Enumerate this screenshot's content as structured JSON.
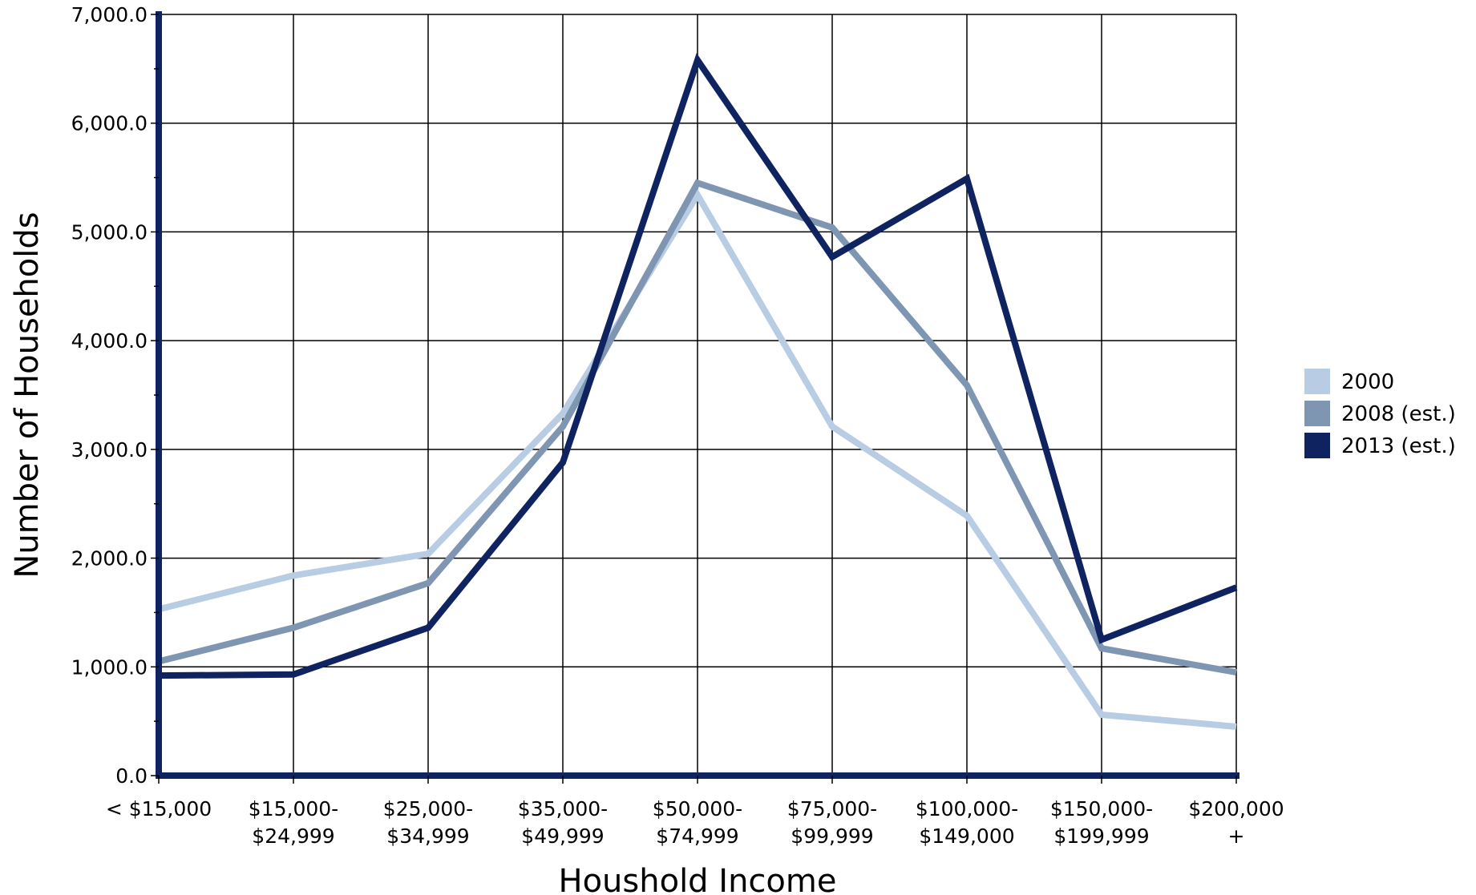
{
  "chart_data": {
    "type": "line",
    "title": "",
    "xlabel": "Houshold Income",
    "ylabel": "Number of Households",
    "categories": [
      [
        "< $15,000"
      ],
      [
        "$15,000-",
        "$24,999"
      ],
      [
        "$25,000-",
        "$34,999"
      ],
      [
        "$35,000-",
        "$49,999"
      ],
      [
        "$50,000-",
        "$74,999"
      ],
      [
        "$75,000-",
        "$99,999"
      ],
      [
        "$100,000-",
        "$149,000"
      ],
      [
        "$150,000-",
        "$199,999"
      ],
      [
        "$200,000",
        "+"
      ]
    ],
    "ylim": [
      0,
      7000
    ],
    "yticks": [
      "0.0",
      "1,000.0",
      "2,000.0",
      "3,000.0",
      "4,000.0",
      "5,000.0",
      "6,000.0",
      "7,000.0"
    ],
    "grid": true,
    "legend_position": "right",
    "series": [
      {
        "name": "2000",
        "color": "#b8cce4",
        "values": [
          1530,
          1840,
          2040,
          3330,
          5340,
          3210,
          2390,
          560,
          450
        ]
      },
      {
        "name": "2008 (est.)",
        "color": "#7f96b2",
        "values": [
          1050,
          1360,
          1770,
          3210,
          5450,
          5040,
          3590,
          1170,
          950
        ]
      },
      {
        "name": "2013 (est.)",
        "color": "#0e2360",
        "values": [
          920,
          930,
          1360,
          2880,
          6580,
          4770,
          5490,
          1250,
          1730
        ]
      }
    ]
  }
}
